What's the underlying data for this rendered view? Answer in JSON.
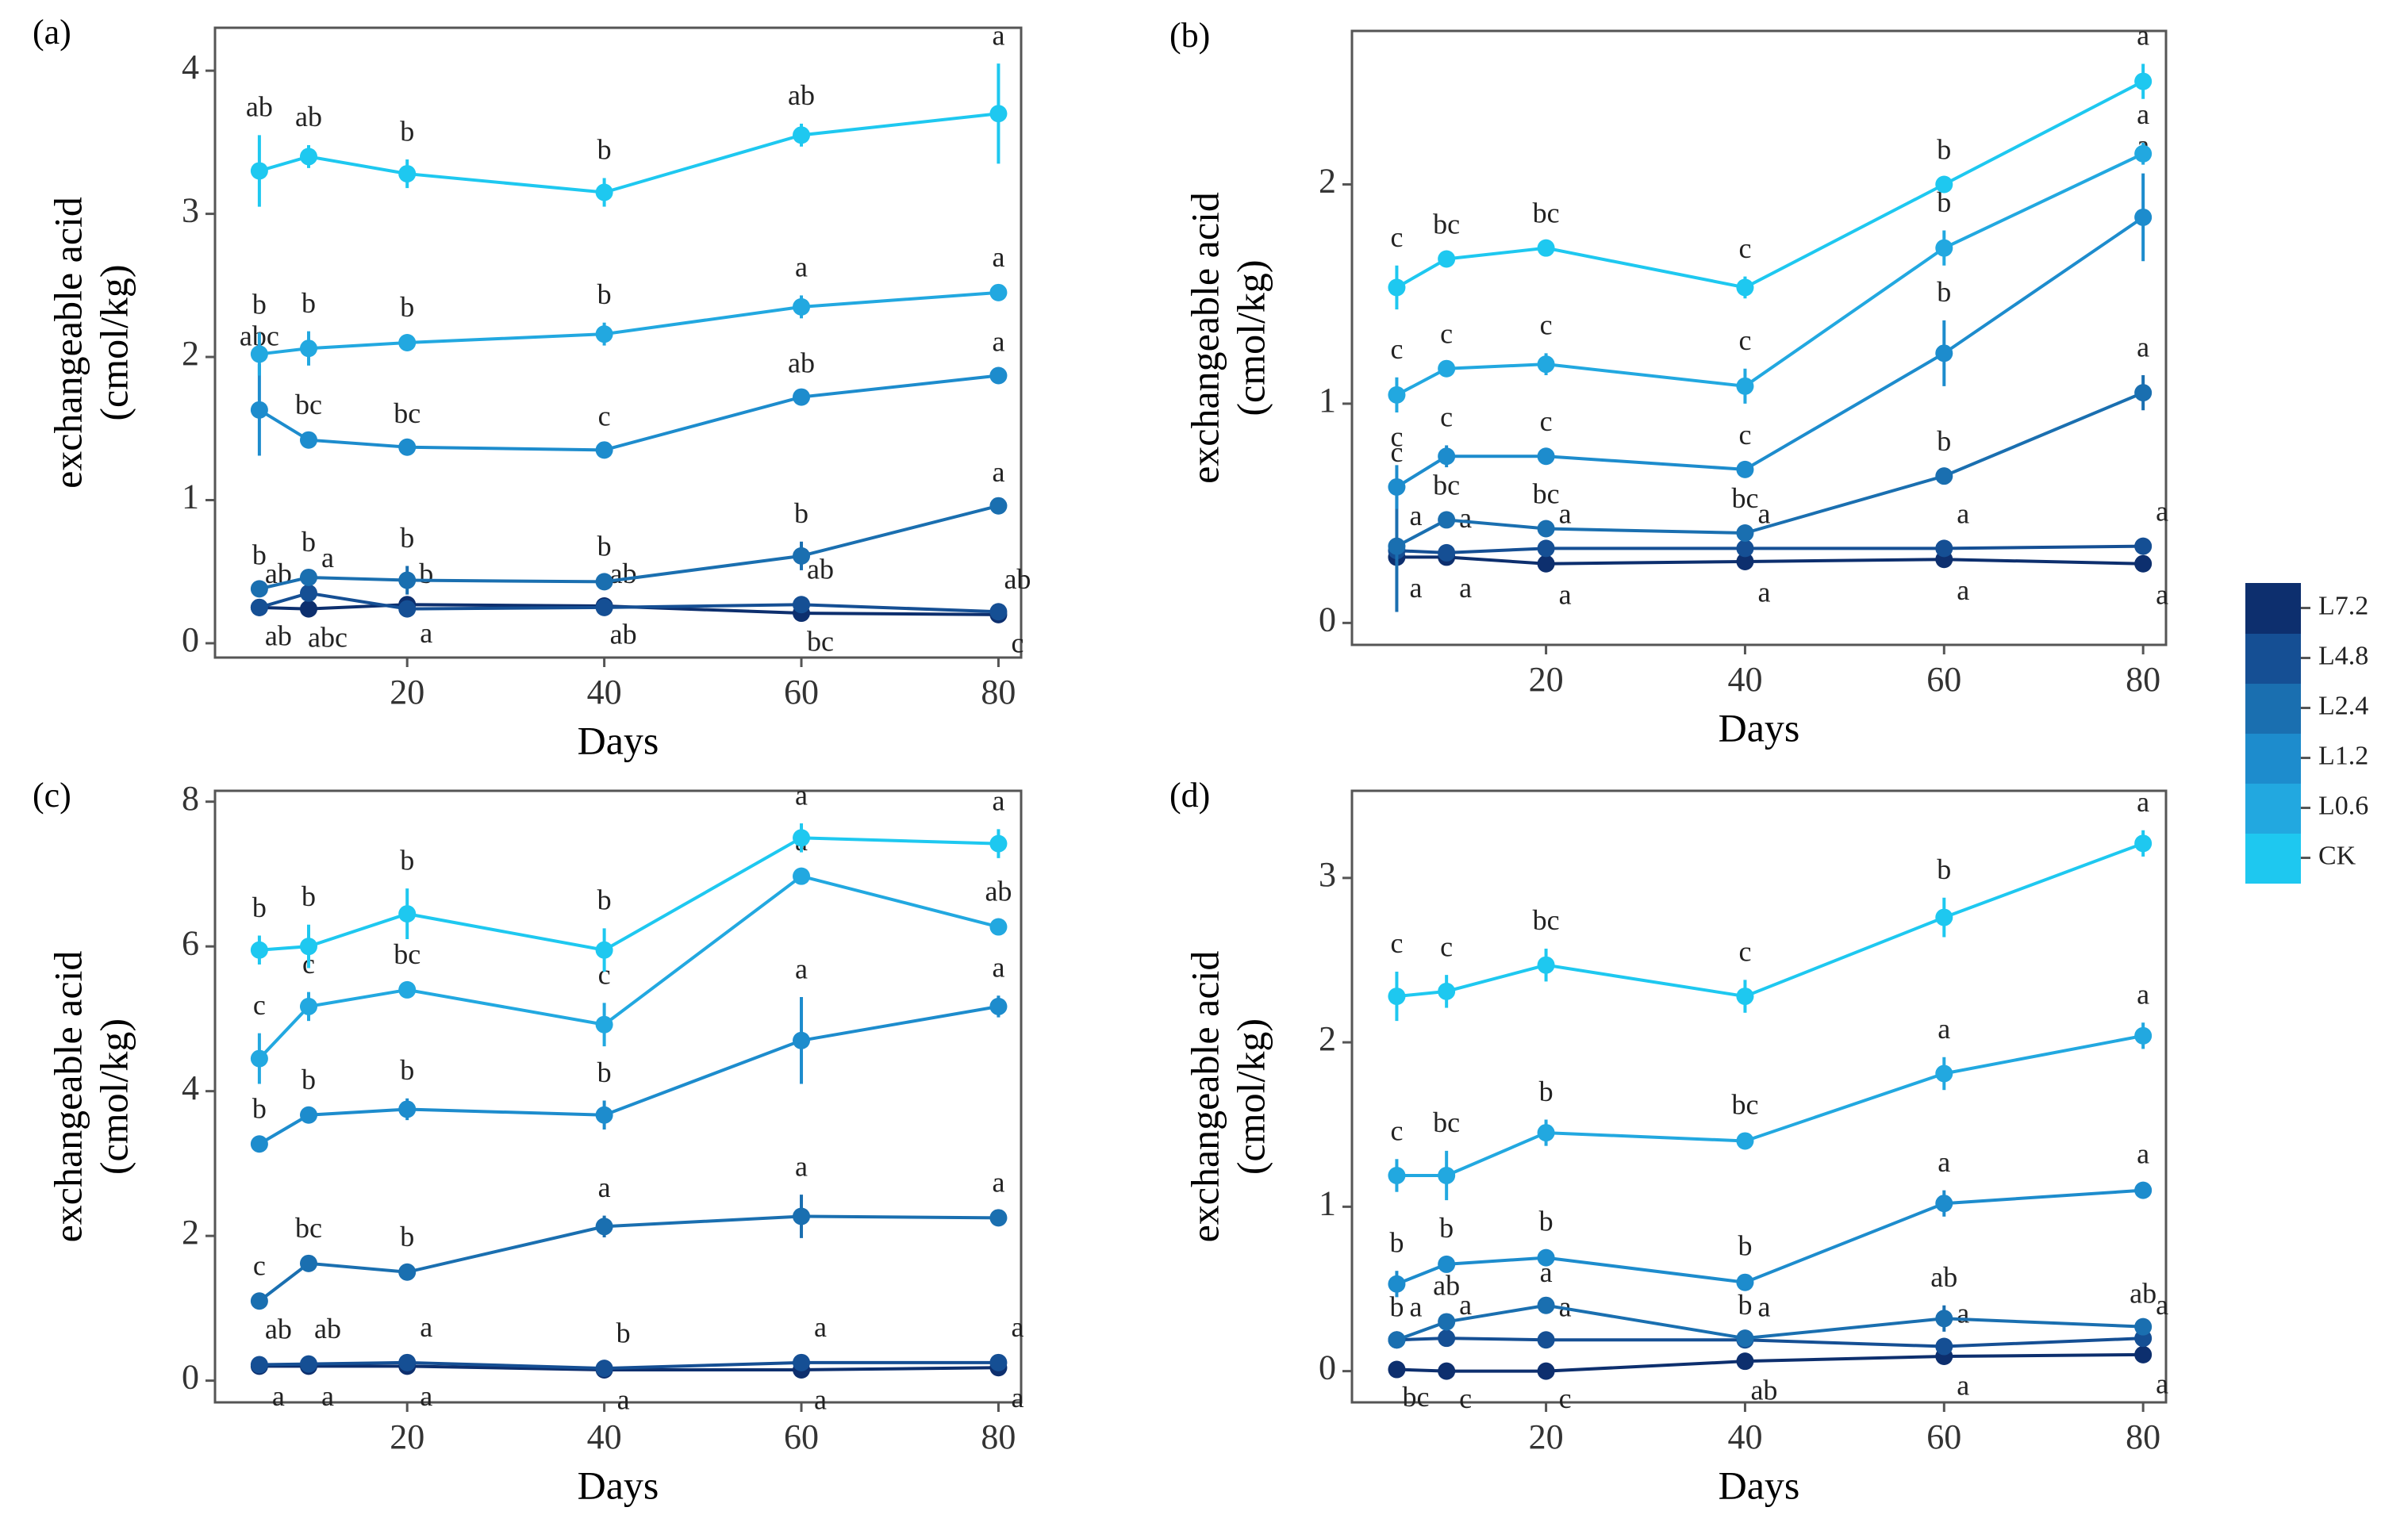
{
  "chart_data": [
    {
      "type": "line",
      "label": "(a)",
      "xlabel": "Days",
      "ylabel": [
        "exchangeable acid",
        "(cmol/kg)"
      ],
      "x": [
        5,
        10,
        20,
        40,
        60,
        80
      ],
      "xlim": [
        0.5,
        82.3
      ],
      "xticks": [
        20,
        40,
        60,
        80
      ],
      "ylim": [
        -0.1,
        4.3
      ],
      "yticks": [
        0,
        1,
        2,
        3,
        4
      ],
      "series": [
        {
          "name": "CK",
          "color": "#1ec8f0",
          "values": [
            3.3,
            3.4,
            3.28,
            3.15,
            3.55,
            3.7
          ],
          "errors": [
            0.25,
            0.08,
            0.1,
            0.1,
            0.08,
            0.35
          ],
          "letters": [
            "ab",
            "ab",
            "b",
            "b",
            "ab",
            "a"
          ]
        },
        {
          "name": "L0.6",
          "color": "#22a8e0",
          "values": [
            2.02,
            2.06,
            2.1,
            2.16,
            2.35,
            2.45
          ],
          "errors": [
            0.15,
            0.12,
            0.05,
            0.08,
            0.08,
            0.05
          ],
          "letters": [
            "b",
            "b",
            "b",
            "b",
            "a",
            "a"
          ]
        },
        {
          "name": "L1.2",
          "color": "#1d8ccd",
          "values": [
            1.63,
            1.42,
            1.37,
            1.35,
            1.72,
            1.87
          ],
          "errors": [
            0.32,
            0.05,
            0.04,
            0.04,
            0.04,
            0.04
          ],
          "letters": [
            "abc",
            "bc",
            "bc",
            "c",
            "ab",
            "a"
          ]
        },
        {
          "name": "L2.4",
          "color": "#1a6fb0",
          "values": [
            0.38,
            0.46,
            0.44,
            0.43,
            0.61,
            0.96
          ],
          "errors": [
            0.04,
            0.05,
            0.1,
            0.05,
            0.1,
            0.04
          ],
          "letters": [
            "b",
            "b",
            "b",
            "b",
            "b",
            "a"
          ]
        },
        {
          "name": "L4.8",
          "color": "#154f94",
          "values": [
            0.25,
            0.35,
            0.24,
            0.25,
            0.27,
            0.22
          ],
          "errors": [
            0.04,
            0.05,
            0.05,
            0.04,
            0.05,
            0.03
          ],
          "letters": [
            "ab",
            "a",
            "b",
            "ab",
            "ab",
            "ab"
          ]
        },
        {
          "name": "L7.2",
          "color": "#0d2f6e",
          "values": [
            0.25,
            0.24,
            0.27,
            0.26,
            0.21,
            0.2
          ],
          "errors": [
            0.03,
            0.03,
            0.03,
            0.03,
            0.03,
            0.03
          ],
          "letters": [
            "ab",
            "abc",
            "a",
            "ab",
            "bc",
            "c"
          ]
        }
      ]
    },
    {
      "type": "line",
      "label": "(b)",
      "xlabel": "Days",
      "ylabel": [
        "exchangeable acid",
        "(cmol/kg)"
      ],
      "x": [
        5,
        10,
        20,
        40,
        60,
        80
      ],
      "xlim": [
        0.5,
        82.3
      ],
      "xticks": [
        20,
        40,
        60,
        80
      ],
      "ylim": [
        -0.1,
        2.7
      ],
      "yticks": [
        0,
        1,
        2
      ],
      "series": [
        {
          "name": "CK",
          "color": "#1ec8f0",
          "values": [
            1.53,
            1.66,
            1.71,
            1.53,
            2.0,
            2.47
          ],
          "errors": [
            0.1,
            0.03,
            0.03,
            0.05,
            0.03,
            0.08
          ],
          "letters": [
            "c",
            "bc",
            "bc",
            "c",
            "b",
            "a"
          ]
        },
        {
          "name": "L0.6",
          "color": "#22a8e0",
          "values": [
            1.04,
            1.16,
            1.18,
            1.08,
            1.71,
            2.14
          ],
          "errors": [
            0.08,
            0.03,
            0.05,
            0.08,
            0.08,
            0.05
          ],
          "letters": [
            "c",
            "c",
            "c",
            "c",
            "b",
            "a"
          ]
        },
        {
          "name": "L1.2",
          "color": "#1d8ccd",
          "values": [
            0.62,
            0.76,
            0.76,
            0.7,
            1.23,
            1.85
          ],
          "errors": [
            0.1,
            0.05,
            0.03,
            0.03,
            0.15,
            0.2
          ],
          "letters": [
            "c",
            "c",
            "c",
            "c",
            "b",
            "a"
          ]
        },
        {
          "name": "L2.4",
          "color": "#1a6fb0",
          "values": [
            0.35,
            0.47,
            0.43,
            0.41,
            0.67,
            1.05
          ],
          "errors": [
            0.3,
            0.03,
            0.03,
            0.03,
            0.03,
            0.08
          ],
          "letters": [
            "c",
            "bc",
            "bc",
            "bc",
            "b",
            "a"
          ]
        },
        {
          "name": "L4.8",
          "color": "#154f94",
          "values": [
            0.33,
            0.32,
            0.34,
            0.34,
            0.34,
            0.35
          ],
          "errors": [
            0.03,
            0.03,
            0.03,
            0.03,
            0.03,
            0.03
          ],
          "letters": [
            "a",
            "a",
            "a",
            "a",
            "a",
            "a"
          ]
        },
        {
          "name": "L7.2",
          "color": "#0d2f6e",
          "values": [
            0.3,
            0.3,
            0.27,
            0.28,
            0.29,
            0.27
          ],
          "errors": [
            0.03,
            0.03,
            0.03,
            0.03,
            0.03,
            0.03
          ],
          "letters": [
            "a",
            "a",
            "a",
            "a",
            "a",
            "a"
          ]
        }
      ]
    },
    {
      "type": "line",
      "label": "(c)",
      "xlabel": "Days",
      "ylabel": [
        "exchangeable acid",
        "(cmol/kg)"
      ],
      "x": [
        5,
        10,
        20,
        40,
        60,
        80
      ],
      "xlim": [
        0.5,
        82.3
      ],
      "xticks": [
        20,
        40,
        60,
        80
      ],
      "ylim": [
        -0.3,
        8.15
      ],
      "yticks": [
        0,
        2,
        4,
        6,
        8
      ],
      "series": [
        {
          "name": "CK",
          "color": "#1ec8f0",
          "values": [
            5.95,
            6.0,
            6.45,
            5.95,
            7.5,
            7.42
          ],
          "errors": [
            0.2,
            0.3,
            0.35,
            0.3,
            0.2,
            0.2
          ],
          "letters": [
            "b",
            "b",
            "b",
            "b",
            "a",
            "a"
          ]
        },
        {
          "name": "L0.6",
          "color": "#22a8e0",
          "values": [
            4.45,
            5.17,
            5.4,
            4.92,
            6.97,
            6.27
          ],
          "errors": [
            0.35,
            0.2,
            0.1,
            0.3,
            0.1,
            0.1
          ],
          "letters": [
            "c",
            "c",
            "bc",
            "c",
            "a",
            "ab"
          ]
        },
        {
          "name": "L1.2",
          "color": "#1d8ccd",
          "values": [
            3.27,
            3.67,
            3.75,
            3.67,
            4.7,
            5.17
          ],
          "errors": [
            0.1,
            0.1,
            0.15,
            0.2,
            0.6,
            0.15
          ],
          "letters": [
            "b",
            "b",
            "b",
            "b",
            "a",
            "a"
          ]
        },
        {
          "name": "L2.4",
          "color": "#1a6fb0",
          "values": [
            1.1,
            1.62,
            1.5,
            2.13,
            2.27,
            2.25
          ],
          "errors": [
            0.1,
            0.1,
            0.1,
            0.15,
            0.3,
            0.1
          ],
          "letters": [
            "c",
            "bc",
            "b",
            "a",
            "a",
            "a"
          ]
        },
        {
          "name": "L4.8",
          "color": "#154f94",
          "values": [
            0.22,
            0.23,
            0.25,
            0.17,
            0.25,
            0.25
          ],
          "errors": [
            0.1,
            0.1,
            0.1,
            0.1,
            0.1,
            0.1
          ],
          "letters": [
            "ab",
            "ab",
            "a",
            "b",
            "a",
            "a"
          ]
        },
        {
          "name": "L7.2",
          "color": "#0d2f6e",
          "values": [
            0.2,
            0.2,
            0.2,
            0.15,
            0.15,
            0.18
          ],
          "errors": [
            0.08,
            0.08,
            0.08,
            0.08,
            0.08,
            0.08
          ],
          "letters": [
            "a",
            "a",
            "a",
            "a",
            "a",
            "a"
          ]
        }
      ]
    },
    {
      "type": "line",
      "label": "(d)",
      "xlabel": "Days",
      "ylabel": [
        "exchangeable acid",
        "(cmol/kg)"
      ],
      "x": [
        5,
        10,
        20,
        40,
        60,
        80
      ],
      "xlim": [
        0.5,
        82.3
      ],
      "xticks": [
        20,
        40,
        60,
        80
      ],
      "ylim": [
        -0.19,
        3.53
      ],
      "yticks": [
        0,
        1,
        2,
        3
      ],
      "series": [
        {
          "name": "CK",
          "color": "#1ec8f0",
          "values": [
            2.28,
            2.31,
            2.47,
            2.28,
            2.76,
            3.21
          ],
          "errors": [
            0.15,
            0.1,
            0.1,
            0.1,
            0.12,
            0.08
          ],
          "letters": [
            "c",
            "c",
            "bc",
            "c",
            "b",
            "a"
          ]
        },
        {
          "name": "L0.6",
          "color": "#22a8e0",
          "values": [
            1.19,
            1.19,
            1.45,
            1.4,
            1.81,
            2.04
          ],
          "errors": [
            0.1,
            0.15,
            0.08,
            0.05,
            0.1,
            0.08
          ],
          "letters": [
            "c",
            "bc",
            "b",
            "bc",
            "a",
            "a"
          ]
        },
        {
          "name": "L1.2",
          "color": "#1d8ccd",
          "values": [
            0.53,
            0.65,
            0.69,
            0.54,
            1.02,
            1.1
          ],
          "errors": [
            0.08,
            0.05,
            0.05,
            0.05,
            0.08,
            0.05
          ],
          "letters": [
            "b",
            "b",
            "b",
            "b",
            "a",
            "a"
          ]
        },
        {
          "name": "L2.4",
          "color": "#1a6fb0",
          "values": [
            0.19,
            0.3,
            0.4,
            0.2,
            0.32,
            0.27
          ],
          "errors": [
            0.03,
            0.05,
            0.03,
            0.03,
            0.08,
            0.03
          ],
          "letters": [
            "b",
            "ab",
            "a",
            "b",
            "ab",
            "ab"
          ]
        },
        {
          "name": "L4.8",
          "color": "#154f94",
          "values": [
            0.19,
            0.2,
            0.19,
            0.19,
            0.15,
            0.2
          ],
          "errors": [
            0.03,
            0.03,
            0.03,
            0.03,
            0.03,
            0.03
          ],
          "letters": [
            "a",
            "a",
            "a",
            "a",
            "a",
            "a"
          ]
        },
        {
          "name": "L7.2",
          "color": "#0d2f6e",
          "values": [
            0.01,
            0.0,
            0.0,
            0.06,
            0.09,
            0.1
          ],
          "errors": [
            0.02,
            0.02,
            0.02,
            0.03,
            0.03,
            0.03
          ],
          "letters": [
            "bc",
            "c",
            "c",
            "ab",
            "a",
            "a"
          ]
        }
      ]
    }
  ]
}
